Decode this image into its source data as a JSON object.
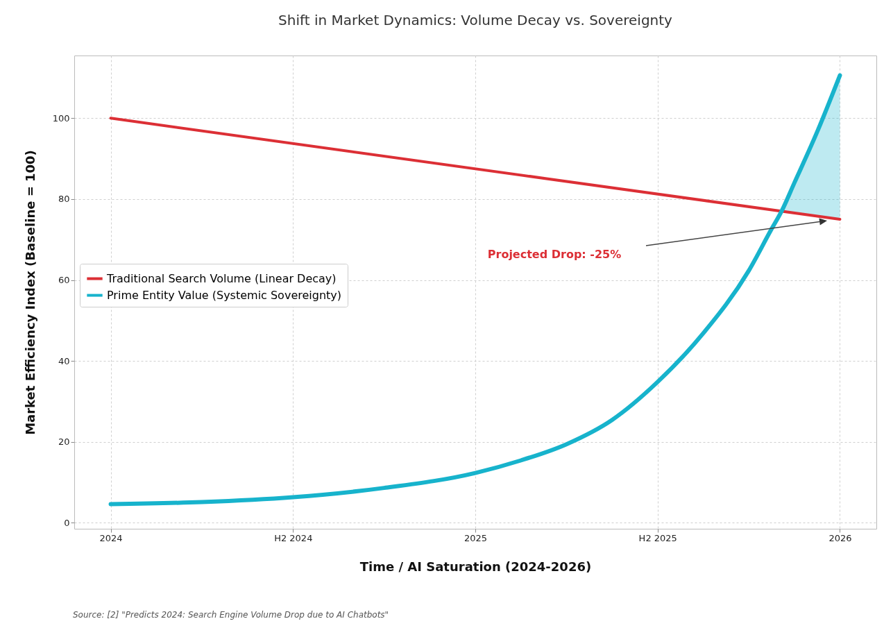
{
  "chart_data": {
    "type": "line",
    "title": "Shift in Market Dynamics: Volume Decay vs. Sovereignty",
    "xlabel": "Time / AI Saturation (2024-2026)",
    "ylabel": "Market Efficiency Index (Baseline = 100)",
    "x": [
      2024,
      2024.25,
      2024.5,
      2024.75,
      2025,
      2025.125,
      2025.25,
      2025.375,
      2025.5,
      2025.625,
      2025.75,
      2025.8125,
      2025.84,
      2025.875,
      2025.9375,
      2026
    ],
    "series": [
      {
        "name": "Traditional Search Volume (Linear Decay)",
        "color": "#dc2f35",
        "x": [
          2024,
          2026
        ],
        "values": [
          100,
          75
        ]
      },
      {
        "name": "Prime Entity Value (Systemic Sovereignty)",
        "color": "#17b3cc",
        "values": [
          4.6,
          5.1,
          6.3,
          8.6,
          12.3,
          15.4,
          19.4,
          25.4,
          34.8,
          46.8,
          62.3,
          72.6,
          77,
          84,
          96.6,
          110.6
        ],
        "lower": [
          null,
          null,
          null,
          null,
          null,
          null,
          null,
          null,
          null,
          null,
          null,
          null,
          77,
          76.6,
          75.8,
          75
        ],
        "upper": [
          null,
          null,
          null,
          null,
          null,
          null,
          null,
          null,
          null,
          null,
          null,
          null,
          77,
          84,
          96.6,
          110.6
        ]
      }
    ],
    "xlim": [
      2023.9,
      2026.1
    ],
    "xticks": [
      2024,
      {
        "value": 2024.5,
        "label": "H2 2024"
      },
      2025,
      {
        "value": 2025.5,
        "label": "H2 2025"
      },
      2026
    ],
    "ylim": [
      -1.5,
      115.5
    ],
    "yticks": [
      0,
      20,
      40,
      60,
      80,
      100
    ],
    "grid": true,
    "legend": "left",
    "annotations": [
      "Projected Drop: -25%",
      "Source: [2] \"Predicts 2024: Search Engine Volume Drop due to AI Chatbots\""
    ]
  }
}
